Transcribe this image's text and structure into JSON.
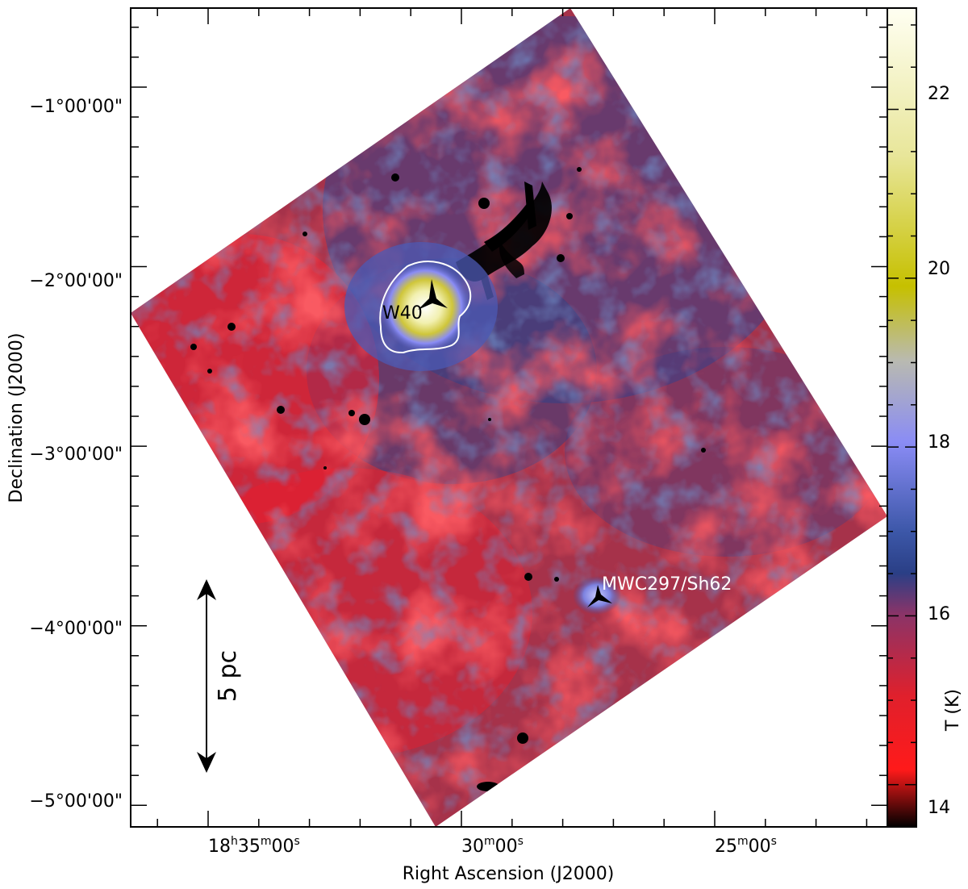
{
  "chart_data": {
    "type": "heatmap",
    "xlabel": "Right Ascension (J2000)",
    "ylabel": "Declination (J2000)",
    "colorbar_label": "T (K)",
    "colorbar_range": [
      13.5,
      23.2
    ],
    "colorbar_ticks": [
      "14",
      "16",
      "18",
      "20",
      "22"
    ],
    "colormap": [
      "#000000",
      "#ff1a1a",
      "#c8283a",
      "#6a3870",
      "#1e3f8a",
      "#8a8cf5",
      "#b0b89a",
      "#c9bf00",
      "#fffde6"
    ],
    "x_tick_labels": [
      {
        "hours": "18",
        "minutes": "35",
        "seconds": "00",
        "text": "18h35m00s"
      },
      {
        "hours": "",
        "minutes": "30",
        "seconds": "00",
        "text": "30m00s"
      },
      {
        "hours": "",
        "minutes": "25",
        "seconds": "00",
        "text": "25m00s"
      }
    ],
    "y_tick_labels": [
      {
        "text": "−1°00'00\"",
        "dec": -1.0
      },
      {
        "text": "−2°00'00\"",
        "dec": -2.0
      },
      {
        "text": "−3°00'00\"",
        "dec": -3.0
      },
      {
        "text": "−4°00'00\"",
        "dec": -4.0
      },
      {
        "text": "−5°00'00\"",
        "dec": -5.0
      }
    ],
    "ylim_deg": [
      -5.12,
      -0.56
    ],
    "annotations": [
      {
        "label": "W40",
        "color": "#000000"
      },
      {
        "label": "MWC297/Sh62",
        "color": "#ffffff"
      }
    ],
    "scale_bar": {
      "label": "5 pc"
    }
  }
}
